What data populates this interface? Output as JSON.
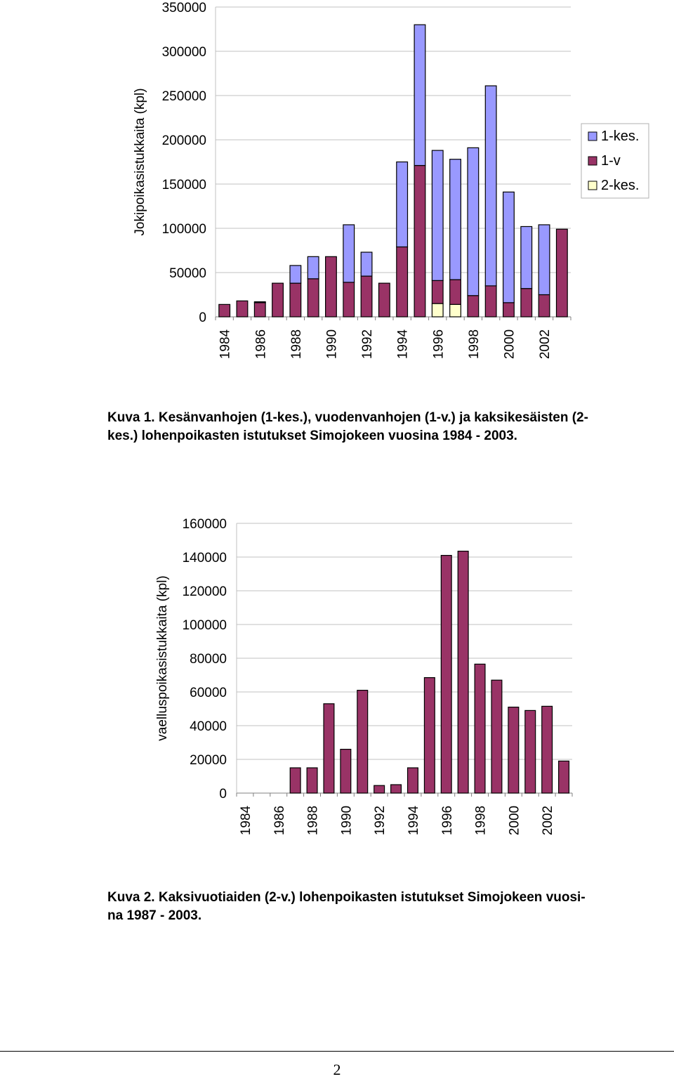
{
  "colors": {
    "kes1": "#9999ff",
    "v1": "#993366",
    "kes2": "#ffffcc",
    "v2": "#993366",
    "grid": "#c0c0c0"
  },
  "chart_data": [
    {
      "type": "bar",
      "stacked": true,
      "ylabel": "Jokipoikasistukkaita (kpl)",
      "ylim": [
        0,
        350000
      ],
      "yticks": [
        0,
        50000,
        100000,
        150000,
        200000,
        250000,
        300000,
        350000
      ],
      "categories": [
        1984,
        1985,
        1986,
        1987,
        1988,
        1989,
        1990,
        1991,
        1992,
        1993,
        1994,
        1995,
        1996,
        1997,
        1998,
        1999,
        2000,
        2001,
        2002,
        2003
      ],
      "xtick_labels": [
        "1984",
        "1986",
        "1988",
        "1990",
        "1992",
        "1994",
        "1996",
        "1998",
        "2000",
        "2002"
      ],
      "legend_position": "right",
      "grid": "horizontal",
      "series": [
        {
          "name": "2-kes.",
          "color_key": "kes2",
          "values": [
            0,
            0,
            0,
            0,
            0,
            0,
            0,
            0,
            0,
            0,
            0,
            0,
            15000,
            14000,
            0,
            0,
            0,
            0,
            0,
            0
          ]
        },
        {
          "name": "1-v",
          "color_key": "v1",
          "values": [
            14000,
            18000,
            16000,
            38000,
            38000,
            43000,
            68000,
            39000,
            46000,
            38000,
            79000,
            171000,
            26000,
            28000,
            24000,
            35000,
            16000,
            32000,
            25000,
            99000
          ]
        },
        {
          "name": "1-kes.",
          "color_key": "kes1",
          "values": [
            0,
            0,
            1000,
            0,
            20000,
            25000,
            0,
            65000,
            27000,
            0,
            96000,
            159000,
            147000,
            136000,
            167000,
            226000,
            125000,
            70000,
            79000,
            0
          ]
        }
      ]
    },
    {
      "type": "bar",
      "ylabel": "vaelluspoikasistukkaita (kpl)",
      "ylim": [
        0,
        160000
      ],
      "yticks": [
        0,
        20000,
        40000,
        60000,
        80000,
        100000,
        120000,
        140000,
        160000
      ],
      "categories": [
        1984,
        1985,
        1986,
        1987,
        1988,
        1989,
        1990,
        1991,
        1992,
        1993,
        1994,
        1995,
        1996,
        1997,
        1998,
        1999,
        2000,
        2001,
        2002,
        2003
      ],
      "xtick_labels": [
        "1984",
        "1986",
        "1988",
        "1990",
        "1992",
        "1994",
        "1996",
        "1998",
        "2000",
        "2002"
      ],
      "grid": "horizontal",
      "series": [
        {
          "name": "",
          "color_key": "v2",
          "values": [
            0,
            0,
            0,
            15000,
            15000,
            53000,
            26000,
            61000,
            4500,
            5000,
            15000,
            68500,
            141000,
            143500,
            76500,
            67000,
            51000,
            49000,
            51500,
            19000
          ]
        }
      ]
    }
  ],
  "captions": {
    "fig1_line1": "Kuva 1. Kesänvanhojen (1-kes.), vuodenvanhojen (1-v.) ja kaksikesäisten (2-",
    "fig1_line2": "kes.) lohenpoikasten istutukset Simojokeen vuosina 1984 - 2003.",
    "fig2_line1": "Kuva 2. Kaksivuotiaiden (2-v.) lohenpoikasten istutukset Simojokeen vuosi-",
    "fig2_line2": "na 1987 - 2003."
  },
  "page_number": "2"
}
